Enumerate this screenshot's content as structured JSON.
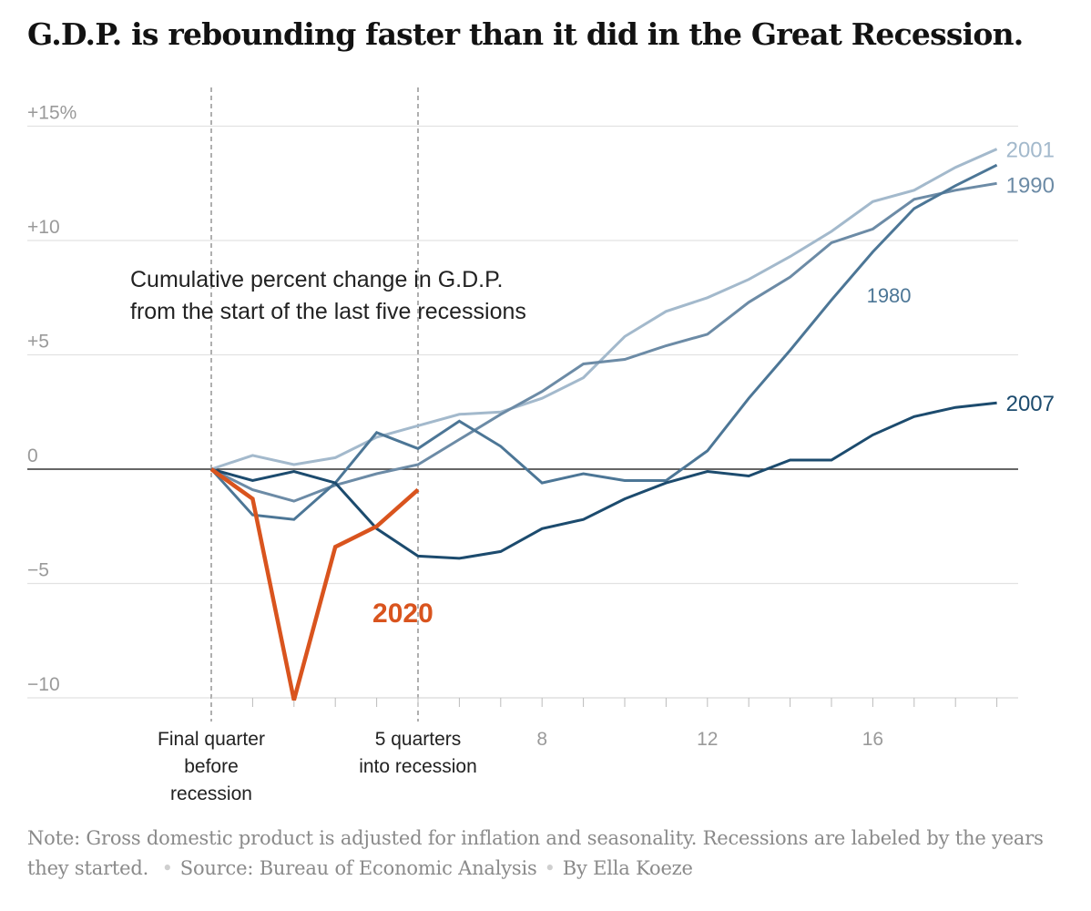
{
  "title": "G.D.P. is rebounding faster than it did in the Great Recession.",
  "annotation": {
    "line1": "Cumulative percent change in G.D.P.",
    "line2": "from the start of the last five recessions"
  },
  "note": {
    "text": "Note: Gross domestic product is adjusted for inflation and seasonality. Recessions are labeled by the years they started.",
    "source": "Source: Bureau of Economic Analysis",
    "byline": "By Ella Koeze"
  },
  "chart_data": {
    "type": "line",
    "x_domain": [
      0,
      19
    ],
    "ylim": [
      -10,
      15
    ],
    "y_ticks": [
      {
        "value": 15,
        "label": "+15%"
      },
      {
        "value": 10,
        "label": "+10"
      },
      {
        "value": 5,
        "label": "+5"
      },
      {
        "value": 0,
        "label": "0"
      },
      {
        "value": -5,
        "label": "−5"
      },
      {
        "value": -10,
        "label": "−10"
      }
    ],
    "x_ticks": [
      {
        "value": 0,
        "lines": [
          "Final quarter",
          "before",
          "recession"
        ]
      },
      {
        "value": 5,
        "lines": [
          "5 quarters",
          "into recession"
        ]
      },
      {
        "value": 8,
        "lines": [
          "8"
        ]
      },
      {
        "value": 12,
        "lines": [
          "12"
        ]
      },
      {
        "value": 16,
        "lines": [
          "16"
        ]
      }
    ],
    "reference_lines_x": [
      0,
      5
    ],
    "series": [
      {
        "name": "2001",
        "color": "#a3b9cc",
        "x": [
          0,
          1,
          2,
          3,
          4,
          5,
          6,
          7,
          8,
          9,
          10,
          11,
          12,
          13,
          14,
          15,
          16,
          17,
          18,
          19
        ],
        "values": [
          0,
          0.6,
          0.2,
          0.5,
          1.4,
          1.9,
          2.4,
          2.5,
          3.1,
          4.0,
          5.8,
          6.9,
          7.5,
          8.3,
          9.3,
          10.4,
          11.7,
          12.2,
          13.2,
          14.0
        ]
      },
      {
        "name": "1990",
        "color": "#6c8ba6",
        "x": [
          0,
          1,
          2,
          3,
          4,
          5,
          6,
          7,
          8,
          9,
          10,
          11,
          12,
          13,
          14,
          15,
          16,
          17,
          18,
          19
        ],
        "values": [
          0,
          -0.9,
          -1.4,
          -0.7,
          -0.2,
          0.2,
          1.3,
          2.4,
          3.4,
          4.6,
          4.8,
          5.4,
          5.9,
          7.3,
          8.4,
          9.9,
          10.5,
          11.8,
          12.2,
          12.5
        ]
      },
      {
        "name": "1980",
        "color": "#4c7696",
        "x": [
          0,
          1,
          2,
          3,
          4,
          5,
          6,
          7,
          8,
          9,
          10,
          11,
          12,
          13,
          14,
          15,
          16,
          17,
          18,
          19
        ],
        "values": [
          0,
          -2.0,
          -2.2,
          -0.6,
          1.6,
          0.9,
          2.1,
          1.0,
          -0.6,
          -0.2,
          -0.5,
          -0.5,
          0.8,
          3.1,
          5.2,
          7.4,
          9.5,
          11.4,
          12.4,
          13.3
        ]
      },
      {
        "name": "2007",
        "color": "#1c4b6e",
        "x": [
          0,
          1,
          2,
          3,
          4,
          5,
          6,
          7,
          8,
          9,
          10,
          11,
          12,
          13,
          14,
          15,
          16,
          17,
          18,
          19
        ],
        "values": [
          0,
          -0.5,
          -0.1,
          -0.6,
          -2.6,
          -3.8,
          -3.9,
          -3.6,
          -2.6,
          -2.2,
          -1.3,
          -0.6,
          -0.1,
          -0.3,
          0.4,
          0.4,
          1.5,
          2.3,
          2.7,
          2.9
        ]
      },
      {
        "name": "2020",
        "color": "#d9541e",
        "x": [
          0,
          1,
          2,
          3,
          4,
          5
        ],
        "values": [
          0,
          -1.3,
          -10.1,
          -3.4,
          -2.5,
          -0.9
        ]
      }
    ],
    "labels": [
      {
        "name": "2001",
        "color": "#a3b9cc",
        "anchor": [
          19,
          14.0
        ],
        "dx": 10,
        "dy": 9,
        "weight": "normal",
        "size": 24
      },
      {
        "name": "1990",
        "color": "#6c8ba6",
        "anchor": [
          19,
          12.5
        ],
        "dx": 10,
        "dy": 10,
        "weight": "normal",
        "size": 24
      },
      {
        "name": "1980",
        "color": "#4c7696",
        "anchor": [
          15.85,
          7.3
        ],
        "dx": 0,
        "dy": 0,
        "weight": "normal",
        "size": 22
      },
      {
        "name": "2007",
        "color": "#1c4b6e",
        "anchor": [
          19,
          2.9
        ],
        "dx": 10,
        "dy": 9,
        "weight": "normal",
        "size": 24
      },
      {
        "name": "2020",
        "color": "#d9541e",
        "anchor": [
          3.9,
          -6.7
        ],
        "dx": 0,
        "dy": 0,
        "weight": "bold",
        "size": 30
      }
    ]
  }
}
